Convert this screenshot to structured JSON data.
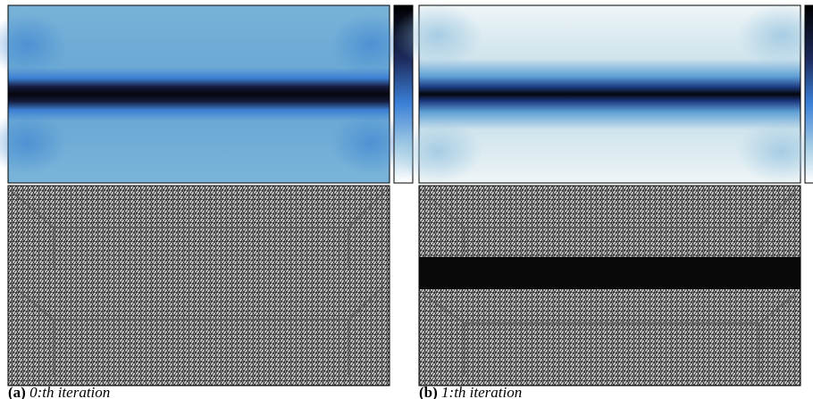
{
  "subfigures": [
    {
      "label": "(a)",
      "caption": "0:th iteration"
    },
    {
      "label": "(b)",
      "caption": "1:th iteration"
    }
  ]
}
